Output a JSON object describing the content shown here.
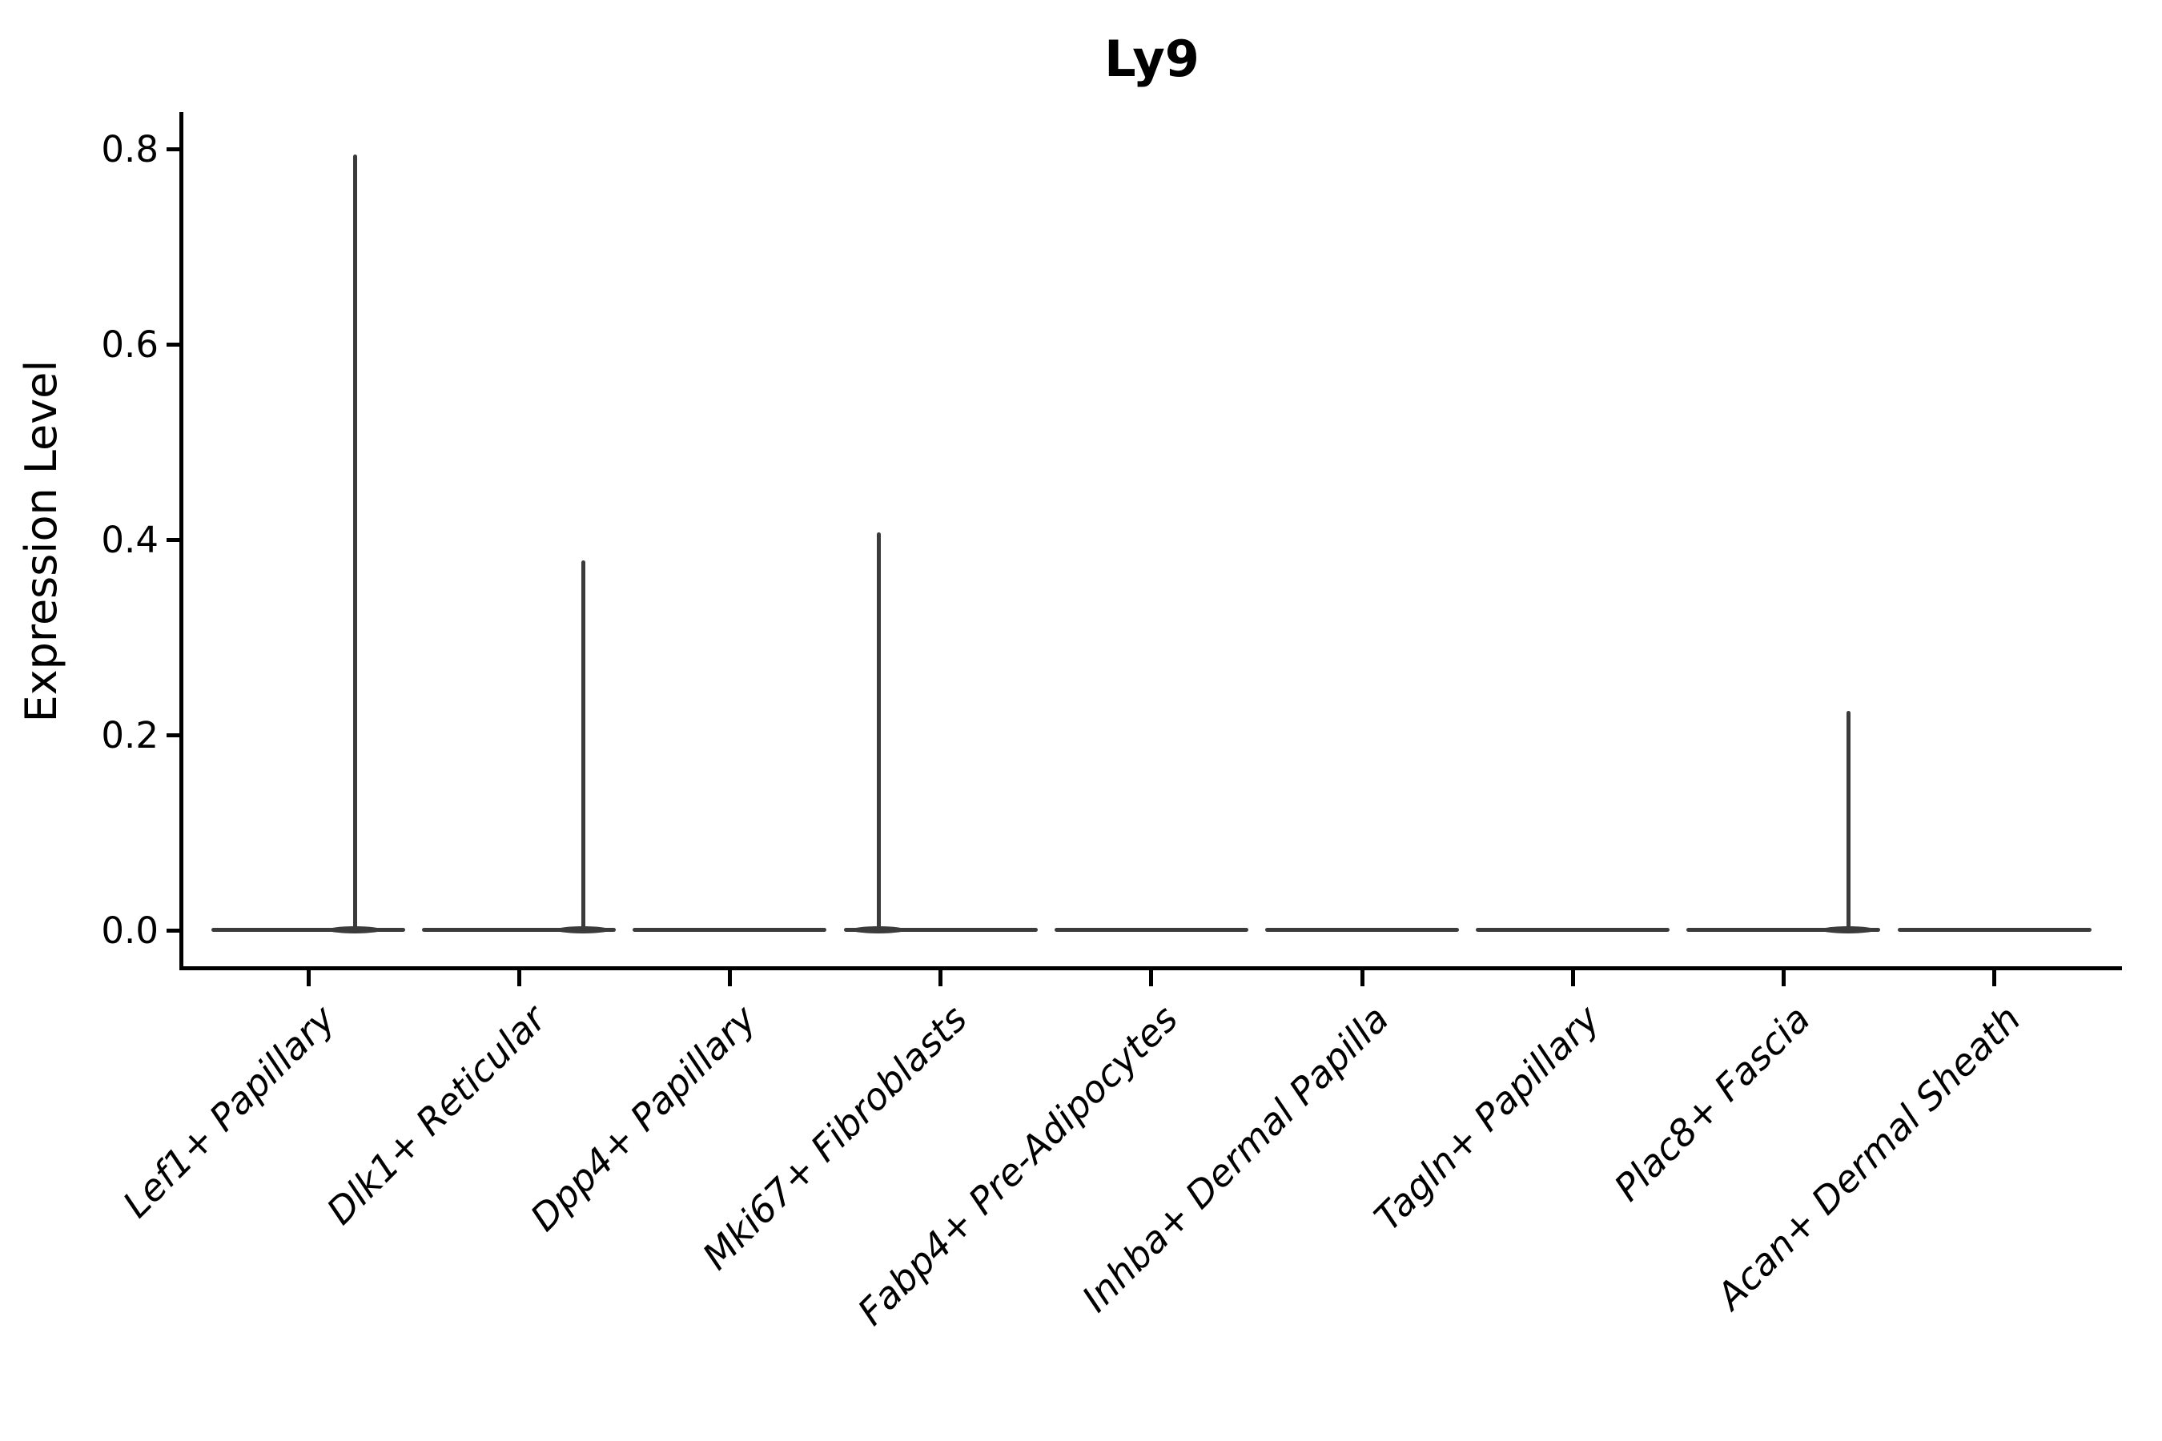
{
  "figure": {
    "background": "#ffffff"
  },
  "chart_data": {
    "type": "violin",
    "title": "Ly9",
    "xlabel": "",
    "ylabel": "Expression Level",
    "categories": [
      "Lef1+ Papillary",
      "Dlk1+ Reticular",
      "Dpp4+ Papillary",
      "Mki67+ Fibroblasts",
      "Fabp4+ Pre-Adipocytes",
      "Inhba+ Dermal Papilla",
      "Tagln+ Papillary",
      "Plac8+ Fascia",
      "Acan+ Dermal Sheath"
    ],
    "series": [
      {
        "name": "Ly9 expression (violin max per cluster)",
        "values": [
          0.795,
          0.379,
          0,
          0.408,
          0,
          0,
          0,
          0.225,
          0
        ]
      }
    ],
    "bulk_density_at_zero": true,
    "spike_offset_frac": [
      0.48,
      0.66,
      0,
      -0.64,
      0,
      0,
      0,
      0.67,
      0
    ],
    "yticks": [
      0.0,
      0.2,
      0.4,
      0.6,
      0.8
    ],
    "ytick_labels": [
      "0.0",
      "0.2",
      "0.4",
      "0.6",
      "0.8"
    ],
    "ylim": [
      0,
      0.8
    ],
    "xtick_rotation": 45,
    "grid": false,
    "legend": null,
    "violin_color": "#3b3b3b",
    "axis_color": "#000000"
  }
}
